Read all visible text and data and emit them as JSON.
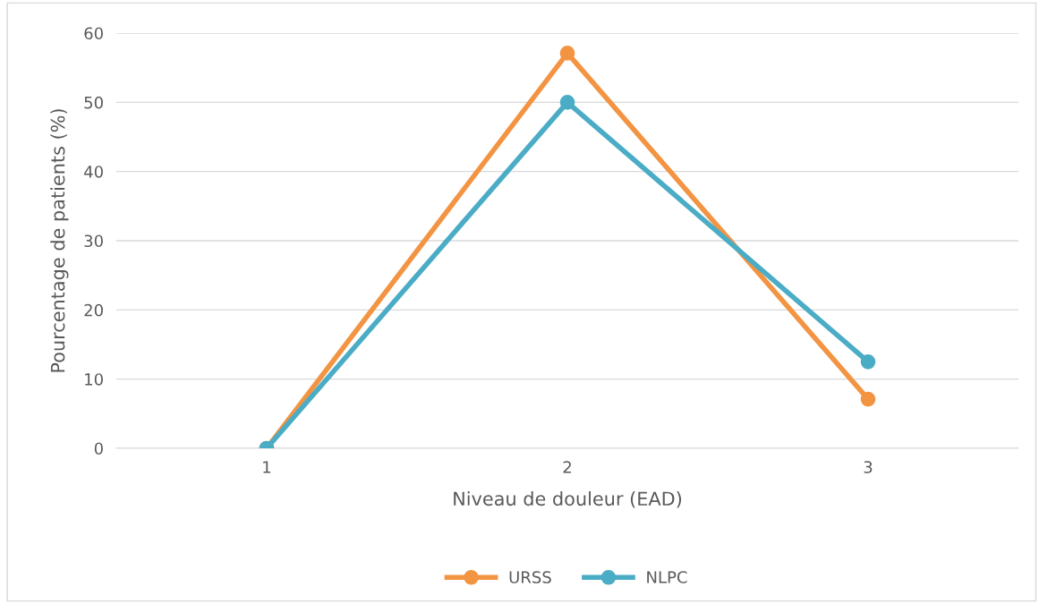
{
  "chart_data": {
    "type": "line",
    "xlabel": "Niveau de douleur (EAD)",
    "ylabel": "Pourcentage de patients (%)",
    "categories": [
      "1",
      "2",
      "3"
    ],
    "series": [
      {
        "name": "URSS",
        "color": "#f39443",
        "values": [
          0,
          57.1,
          7.1
        ]
      },
      {
        "name": "NLPC",
        "color": "#4bacc6",
        "values": [
          0,
          50,
          12.5
        ]
      }
    ],
    "ylim": [
      0,
      60
    ],
    "yticks": [
      0,
      10,
      20,
      30,
      40,
      50,
      60
    ],
    "grid": "y",
    "legend": "bottom",
    "marker": "circle",
    "line_style": "solid"
  }
}
